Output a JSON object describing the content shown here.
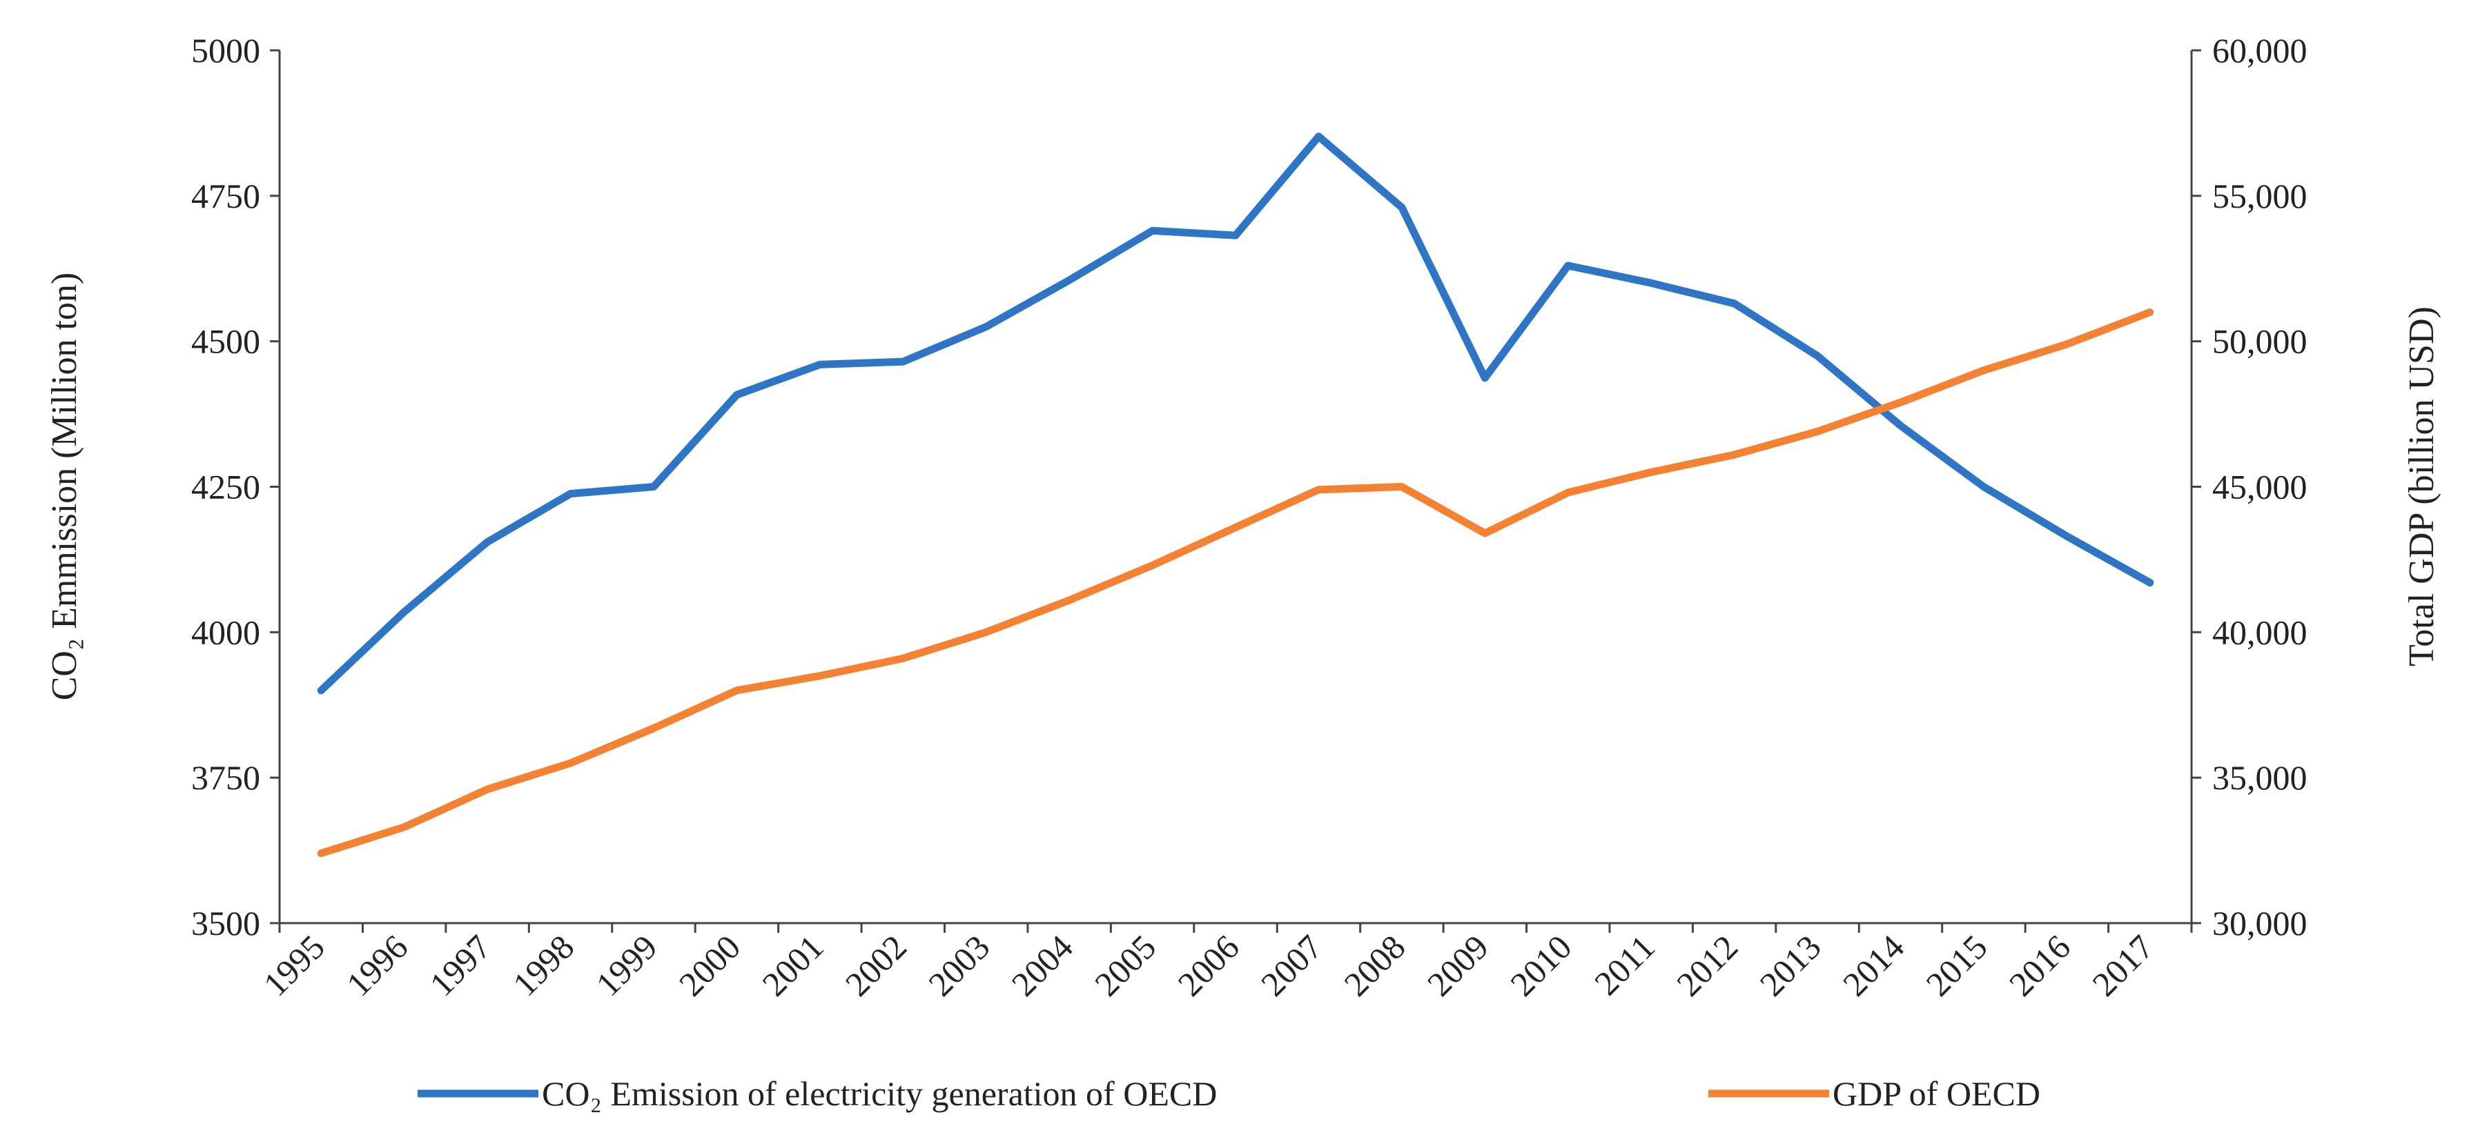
{
  "chart_data": {
    "type": "line",
    "title": "",
    "x": [
      "1995",
      "1996",
      "1997",
      "1998",
      "1999",
      "2000",
      "2001",
      "2002",
      "2003",
      "2004",
      "2005",
      "2006",
      "2007",
      "2008",
      "2009",
      "2010",
      "2011",
      "2012",
      "2013",
      "2014",
      "2015",
      "2016",
      "2017"
    ],
    "xlabel": "",
    "y_left": {
      "label": "CO₂ Emmission (Million ton)",
      "ylim": [
        3500,
        5000
      ],
      "ticks": [
        3500,
        3750,
        4000,
        4250,
        4500,
        4750,
        5000
      ],
      "tick_labels": [
        "3500",
        "3750",
        "4000",
        "4250",
        "4500",
        "4750",
        "5000"
      ]
    },
    "y_right": {
      "label": "Total GDP (billion USD)",
      "ylim": [
        30000,
        60000
      ],
      "ticks": [
        30000,
        35000,
        40000,
        45000,
        50000,
        55000,
        60000
      ],
      "tick_labels": [
        "30,000",
        "35,000",
        "40,000",
        "45,000",
        "50,000",
        "55,000",
        "60,000"
      ]
    },
    "series": [
      {
        "name": "CO₂ Emission of electricity generation of OECD",
        "axis": "left",
        "color": "#2E75C6",
        "values": [
          3900,
          4035,
          4155,
          4238,
          4250,
          4408,
          4460,
          4465,
          4525,
          4605,
          4690,
          4682,
          4852,
          4730,
          4437,
          4630,
          4600,
          4565,
          4475,
          4355,
          4250,
          4165,
          4085
        ]
      },
      {
        "name": "GDP of OECD",
        "axis": "right",
        "color": "#F58233",
        "values": [
          32400,
          33300,
          34600,
          35500,
          36700,
          38000,
          38500,
          39100,
          40000,
          41100,
          42300,
          43600,
          44900,
          45000,
          43400,
          44800,
          45500,
          46100,
          46900,
          47900,
          49000,
          49900,
          51000
        ]
      }
    ],
    "legend": "bottom",
    "grid": false
  }
}
